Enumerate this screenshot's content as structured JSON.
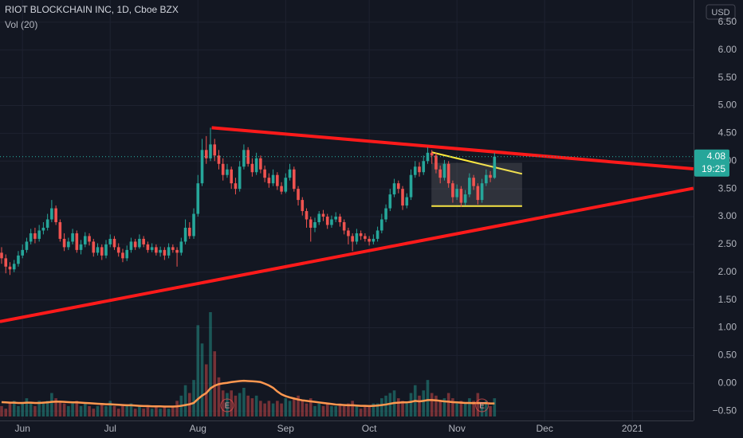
{
  "chart_data": {
    "type": "candlestick",
    "title": "RIOT BLOCKCHAIN INC, 1D, Cboe BZX",
    "indicator": "Vol (20)",
    "currency": "USD",
    "categories": [
      null,
      null,
      null,
      null,
      null,
      "Jun",
      null,
      null,
      null,
      null,
      null,
      null,
      null,
      null,
      null,
      null,
      null,
      null,
      null,
      null,
      null,
      null,
      null,
      null,
      null,
      null,
      "Jul",
      null,
      null,
      null,
      null,
      null,
      null,
      null,
      null,
      null,
      null,
      null,
      null,
      null,
      null,
      null,
      null,
      null,
      null,
      null,
      null,
      "Aug",
      null,
      null,
      null,
      null,
      null,
      null,
      null,
      null,
      null,
      null,
      null,
      null,
      null,
      null,
      null,
      null,
      null,
      null,
      null,
      null,
      "Sep",
      null,
      null,
      null,
      null,
      null,
      null,
      null,
      null,
      null,
      null,
      null,
      null,
      null,
      null,
      null,
      null,
      null,
      null,
      null,
      "Oct",
      null,
      null,
      null,
      null,
      null,
      null,
      null,
      null,
      null,
      null,
      null,
      null,
      null,
      null,
      null,
      null,
      null,
      null,
      null,
      null,
      "Nov",
      null,
      null,
      null,
      null,
      null,
      null,
      null,
      null,
      null,
      null,
      null,
      null,
      null,
      null,
      null,
      null,
      null,
      null,
      null,
      null,
      "Dec",
      null,
      null,
      null,
      null,
      null,
      null,
      null,
      null,
      null,
      null,
      null,
      null,
      null,
      null,
      null,
      null,
      null,
      null,
      null,
      null,
      "2021",
      null,
      null,
      null,
      null,
      null,
      null,
      null,
      null,
      null,
      null,
      null,
      null,
      null,
      null
    ],
    "open": [
      2.35,
      2.25,
      2.1,
      2.05,
      2.15,
      2.3,
      2.4,
      2.55,
      2.7,
      2.6,
      2.75,
      2.8,
      2.95,
      3.15,
      2.9,
      2.6,
      2.45,
      2.55,
      2.7,
      2.4,
      2.5,
      2.65,
      2.55,
      2.35,
      2.45,
      2.3,
      2.5,
      2.6,
      2.45,
      2.35,
      2.25,
      2.4,
      2.55,
      2.45,
      2.6,
      2.5,
      2.4,
      2.45,
      2.35,
      2.4,
      2.3,
      2.45,
      2.4,
      2.35,
      2.55,
      2.8,
      2.65,
      3.05,
      3.6,
      4.2,
      4.05,
      4.3,
      4.1,
      3.95,
      3.75,
      3.85,
      3.6,
      3.5,
      3.9,
      4.2,
      3.95,
      3.8,
      4.05,
      3.85,
      3.7,
      3.6,
      3.75,
      3.55,
      3.45,
      3.7,
      3.85,
      3.5,
      3.3,
      3.1,
      2.95,
      2.8,
      2.9,
      3.05,
      3.0,
      2.85,
      2.95,
      3.0,
      2.9,
      2.75,
      2.65,
      2.55,
      2.7,
      2.65,
      2.6,
      2.55,
      2.6,
      2.75,
      2.95,
      3.15,
      3.4,
      3.6,
      3.5,
      3.2,
      3.35,
      3.75,
      3.9,
      3.8,
      4.0,
      4.15,
      4.1,
      3.85,
      3.7,
      3.95,
      3.6,
      3.35,
      3.5,
      3.25,
      3.4,
      3.7,
      3.55,
      3.3,
      3.6,
      3.75,
      3.7,
      null,
      null,
      null,
      null,
      null,
      null,
      null,
      null,
      null,
      null,
      null,
      null,
      null,
      null,
      null,
      null,
      null,
      null,
      null,
      null,
      null,
      null,
      null,
      null,
      null,
      null,
      null,
      null,
      null,
      null,
      null,
      null,
      null,
      null,
      null,
      null,
      null,
      null,
      null,
      null,
      null,
      null,
      null,
      null,
      null,
      null,
      null
    ],
    "high": [
      2.45,
      2.32,
      2.18,
      2.22,
      2.38,
      2.5,
      2.62,
      2.78,
      2.8,
      2.85,
      2.9,
      3.05,
      3.3,
      3.2,
      2.95,
      2.7,
      2.62,
      2.78,
      2.75,
      2.58,
      2.72,
      2.7,
      2.6,
      2.52,
      2.5,
      2.58,
      2.68,
      2.65,
      2.52,
      2.42,
      2.48,
      2.62,
      2.6,
      2.68,
      2.65,
      2.55,
      2.52,
      2.5,
      2.46,
      2.45,
      2.52,
      2.5,
      2.45,
      2.62,
      2.95,
      2.9,
      3.15,
      3.75,
      4.4,
      4.45,
      4.6,
      4.4,
      4.2,
      4.05,
      3.95,
      3.9,
      3.7,
      4.0,
      4.3,
      4.25,
      4.05,
      4.15,
      4.1,
      3.92,
      3.78,
      3.85,
      3.8,
      3.62,
      3.78,
      3.95,
      3.9,
      3.55,
      3.35,
      3.15,
      3.0,
      2.98,
      3.1,
      3.12,
      3.05,
      3.02,
      3.08,
      3.05,
      2.95,
      2.8,
      2.7,
      2.78,
      2.75,
      2.7,
      2.65,
      2.68,
      2.82,
      3.05,
      3.22,
      3.5,
      3.68,
      3.65,
      3.55,
      3.42,
      3.85,
      4.0,
      3.98,
      4.1,
      4.25,
      4.2,
      4.15,
      3.92,
      4.02,
      4.0,
      3.65,
      3.58,
      3.55,
      3.48,
      3.78,
      3.75,
      3.6,
      3.68,
      3.85,
      3.82,
      4.15,
      null,
      null,
      null,
      null,
      null,
      null,
      null,
      null,
      null,
      null,
      null,
      null,
      null,
      null,
      null,
      null,
      null,
      null,
      null,
      null,
      null,
      null,
      null,
      null,
      null,
      null,
      null,
      null,
      null,
      null,
      null,
      null,
      null,
      null,
      null,
      null,
      null,
      null,
      null,
      null,
      null,
      null,
      null,
      null,
      null,
      null,
      null
    ],
    "low": [
      2.15,
      1.98,
      1.95,
      2.0,
      2.1,
      2.25,
      2.35,
      2.5,
      2.52,
      2.55,
      2.68,
      2.75,
      2.9,
      2.85,
      2.55,
      2.38,
      2.4,
      2.5,
      2.35,
      2.32,
      2.45,
      2.48,
      2.28,
      2.3,
      2.22,
      2.25,
      2.45,
      2.4,
      2.28,
      2.18,
      2.2,
      2.35,
      2.4,
      2.42,
      2.45,
      2.35,
      2.36,
      2.3,
      2.28,
      2.22,
      2.25,
      2.35,
      2.1,
      2.3,
      2.5,
      2.6,
      2.6,
      3.0,
      3.55,
      3.95,
      4.0,
      4.0,
      3.85,
      3.65,
      3.7,
      3.5,
      3.4,
      3.45,
      3.85,
      3.9,
      3.72,
      3.75,
      3.78,
      3.62,
      3.52,
      3.55,
      3.48,
      3.4,
      3.42,
      3.65,
      3.45,
      3.2,
      3.02,
      2.8,
      2.55,
      2.72,
      2.85,
      2.92,
      2.78,
      2.8,
      2.9,
      2.82,
      2.68,
      2.5,
      2.38,
      2.5,
      2.58,
      2.55,
      2.48,
      2.5,
      2.55,
      2.7,
      2.9,
      3.1,
      3.35,
      3.42,
      3.12,
      3.15,
      3.3,
      3.7,
      3.72,
      3.75,
      3.95,
      3.95,
      3.78,
      3.6,
      3.65,
      3.52,
      3.25,
      3.3,
      3.18,
      3.2,
      3.35,
      3.48,
      3.22,
      3.25,
      3.55,
      3.62,
      3.68,
      null,
      null,
      null,
      null,
      null,
      null,
      null,
      null,
      null,
      null,
      null,
      null,
      null,
      null,
      null,
      null,
      null,
      null,
      null,
      null,
      null,
      null,
      null,
      null,
      null,
      null,
      null,
      null,
      null,
      null,
      null,
      null,
      null,
      null,
      null,
      null,
      null,
      null,
      null,
      null,
      null,
      null,
      null,
      null,
      null,
      null,
      null
    ],
    "close": [
      2.25,
      2.1,
      2.05,
      2.15,
      2.3,
      2.4,
      2.55,
      2.7,
      2.6,
      2.75,
      2.8,
      2.95,
      3.15,
      2.9,
      2.6,
      2.45,
      2.55,
      2.7,
      2.4,
      2.5,
      2.65,
      2.55,
      2.35,
      2.45,
      2.3,
      2.5,
      2.6,
      2.45,
      2.35,
      2.25,
      2.4,
      2.55,
      2.45,
      2.6,
      2.5,
      2.4,
      2.45,
      2.35,
      2.4,
      2.3,
      2.45,
      2.4,
      2.35,
      2.55,
      2.8,
      2.65,
      3.05,
      3.6,
      4.2,
      4.05,
      4.3,
      4.1,
      3.95,
      3.75,
      3.85,
      3.6,
      3.5,
      3.9,
      4.2,
      3.95,
      3.8,
      4.05,
      3.85,
      3.7,
      3.6,
      3.75,
      3.55,
      3.45,
      3.7,
      3.85,
      3.5,
      3.3,
      3.1,
      2.95,
      2.8,
      2.9,
      3.05,
      3.0,
      2.85,
      2.95,
      3.0,
      2.9,
      2.75,
      2.65,
      2.55,
      2.7,
      2.65,
      2.6,
      2.55,
      2.6,
      2.75,
      2.95,
      3.15,
      3.4,
      3.6,
      3.5,
      3.2,
      3.35,
      3.75,
      3.9,
      3.8,
      4.0,
      4.15,
      4.1,
      3.85,
      3.7,
      3.95,
      3.6,
      3.35,
      3.5,
      3.25,
      3.4,
      3.7,
      3.55,
      3.3,
      3.6,
      3.75,
      3.7,
      4.08,
      null,
      null,
      null,
      null,
      null,
      null,
      null,
      null,
      null,
      null,
      null,
      null,
      null,
      null,
      null,
      null,
      null,
      null,
      null,
      null,
      null,
      null,
      null,
      null,
      null,
      null,
      null,
      null,
      null,
      null,
      null,
      null,
      null,
      null,
      null,
      null,
      null,
      null,
      null,
      null,
      null,
      null,
      null,
      null,
      null,
      null,
      null
    ],
    "volume": [
      4,
      3,
      5,
      6,
      4,
      5,
      7,
      5,
      4,
      6,
      5,
      6,
      9,
      7,
      6,
      5,
      4,
      5,
      6,
      4,
      5,
      4,
      3,
      4,
      5,
      4,
      6,
      4,
      3,
      4,
      4,
      5,
      3,
      4,
      3,
      4,
      3,
      4,
      3,
      4,
      3,
      4,
      6,
      8,
      12,
      9,
      14,
      35,
      28,
      20,
      40,
      25,
      15,
      10,
      9,
      10,
      8,
      9,
      11,
      8,
      7,
      8,
      6,
      5,
      6,
      5,
      6,
      5,
      7,
      6,
      7,
      8,
      6,
      5,
      7,
      4,
      5,
      4,
      5,
      4,
      4,
      5,
      4,
      5,
      6,
      4,
      3,
      4,
      4,
      5,
      5,
      7,
      8,
      9,
      10,
      7,
      6,
      5,
      9,
      12,
      8,
      10,
      14,
      9,
      8,
      6,
      7,
      9,
      7,
      5,
      6,
      5,
      7,
      6,
      9,
      5,
      6,
      4,
      7,
      null,
      null,
      null,
      null,
      null,
      null,
      null,
      null,
      null,
      null,
      null,
      null,
      null,
      null,
      null,
      null,
      null,
      null,
      null,
      null,
      null,
      null,
      null,
      null,
      null,
      null,
      null,
      null,
      null,
      null,
      null,
      null,
      null,
      null,
      null,
      null,
      null,
      null,
      null,
      null,
      null,
      null,
      null,
      null,
      null,
      null,
      null
    ],
    "volume_ma": [
      5.5,
      5.4,
      5.3,
      5.3,
      5.2,
      5.2,
      5.3,
      5.3,
      5.2,
      5.2,
      5.3,
      5.4,
      5.6,
      5.7,
      5.7,
      5.6,
      5.5,
      5.4,
      5.4,
      5.3,
      5.2,
      5.1,
      5.0,
      4.9,
      4.8,
      4.7,
      4.7,
      4.6,
      4.5,
      4.4,
      4.3,
      4.3,
      4.2,
      4.1,
      4.0,
      4.0,
      3.9,
      3.9,
      3.9,
      3.8,
      3.8,
      3.8,
      3.9,
      4.1,
      4.4,
      4.7,
      5.2,
      6.7,
      8.0,
      9.0,
      10.8,
      11.8,
      12.4,
      12.7,
      12.9,
      13.2,
      13.4,
      13.6,
      13.7,
      13.6,
      13.5,
      13.4,
      13.2,
      12.6,
      11.9,
      11.0,
      9.6,
      8.5,
      7.8,
      7.3,
      6.9,
      6.5,
      6.2,
      6.0,
      5.8,
      5.6,
      5.4,
      5.2,
      5.0,
      4.8,
      4.6,
      4.5,
      4.4,
      4.3,
      4.3,
      4.2,
      4.1,
      4.1,
      4.0,
      4.1,
      4.2,
      4.4,
      4.6,
      4.9,
      5.2,
      5.3,
      5.4,
      5.4,
      5.6,
      6.0,
      5.8,
      6.0,
      6.3,
      6.3,
      6.2,
      6.0,
      5.8,
      5.7,
      5.5,
      5.4,
      5.3,
      5.2,
      5.2,
      5.1,
      5.2,
      5.1,
      5.1,
      5.0,
      5.0,
      null,
      null,
      null,
      null,
      null,
      null,
      null,
      null,
      null,
      null,
      null,
      null,
      null,
      null,
      null,
      null,
      null,
      null,
      null,
      null,
      null,
      null,
      null,
      null,
      null,
      null,
      null,
      null,
      null,
      null,
      null,
      null,
      null,
      null,
      null,
      null,
      null,
      null,
      null,
      null,
      null,
      null,
      null,
      null,
      null,
      null,
      null
    ],
    "up_color": "#26a69a",
    "down_color": "#ef5350",
    "ma_color": "#ff9850",
    "ylim": [
      -0.67,
      6.9
    ],
    "yticks": [
      {
        "value": 6.5,
        "label": "6.50"
      },
      {
        "value": 6,
        "label": "6.00"
      },
      {
        "value": 5.5,
        "label": "5.50"
      },
      {
        "value": 5,
        "label": "5.00"
      },
      {
        "value": 4.5,
        "label": "4.50"
      },
      {
        "value": 4,
        "label": "4.00"
      },
      {
        "value": 3.5,
        "label": "3.50"
      },
      {
        "value": 3,
        "label": "3.00"
      },
      {
        "value": 2.5,
        "label": "2.50"
      },
      {
        "value": 2,
        "label": "2.00"
      },
      {
        "value": 1.5,
        "label": "1.50"
      },
      {
        "value": 1,
        "label": "1.00"
      },
      {
        "value": 0.5,
        "label": "0.50"
      },
      {
        "value": 0,
        "label": "0.00"
      },
      {
        "value": -0.5,
        "label": "−0.50"
      }
    ],
    "grid": true,
    "last_price": {
      "value": 4.08,
      "label": "4.08"
    },
    "countdown": "19:25",
    "earnings_markers": [
      "E",
      "E"
    ],
    "drawings": [
      {
        "kind": "line",
        "color": "#ff1a1a",
        "points": [
          [
            50.3,
            4.6
          ],
          [
            165.6,
            3.86
          ]
        ]
      },
      {
        "kind": "line",
        "color": "#ff1a1a",
        "points": [
          [
            -0.4,
            1.11
          ],
          [
            165.6,
            3.51
          ]
        ]
      },
      {
        "kind": "line",
        "color": "#ffeb3b",
        "points": [
          [
            102.9,
            4.16
          ],
          [
            124.6,
            3.77
          ]
        ]
      },
      {
        "kind": "line",
        "color": "#ffeb3b",
        "points": [
          [
            102.9,
            3.19
          ],
          [
            124.6,
            3.19
          ]
        ]
      },
      {
        "kind": "box",
        "color": "rgba(180,180,180,0.18)",
        "points": [
          [
            102.9,
            3.97
          ],
          [
            124.6,
            3.19
          ]
        ]
      }
    ]
  }
}
